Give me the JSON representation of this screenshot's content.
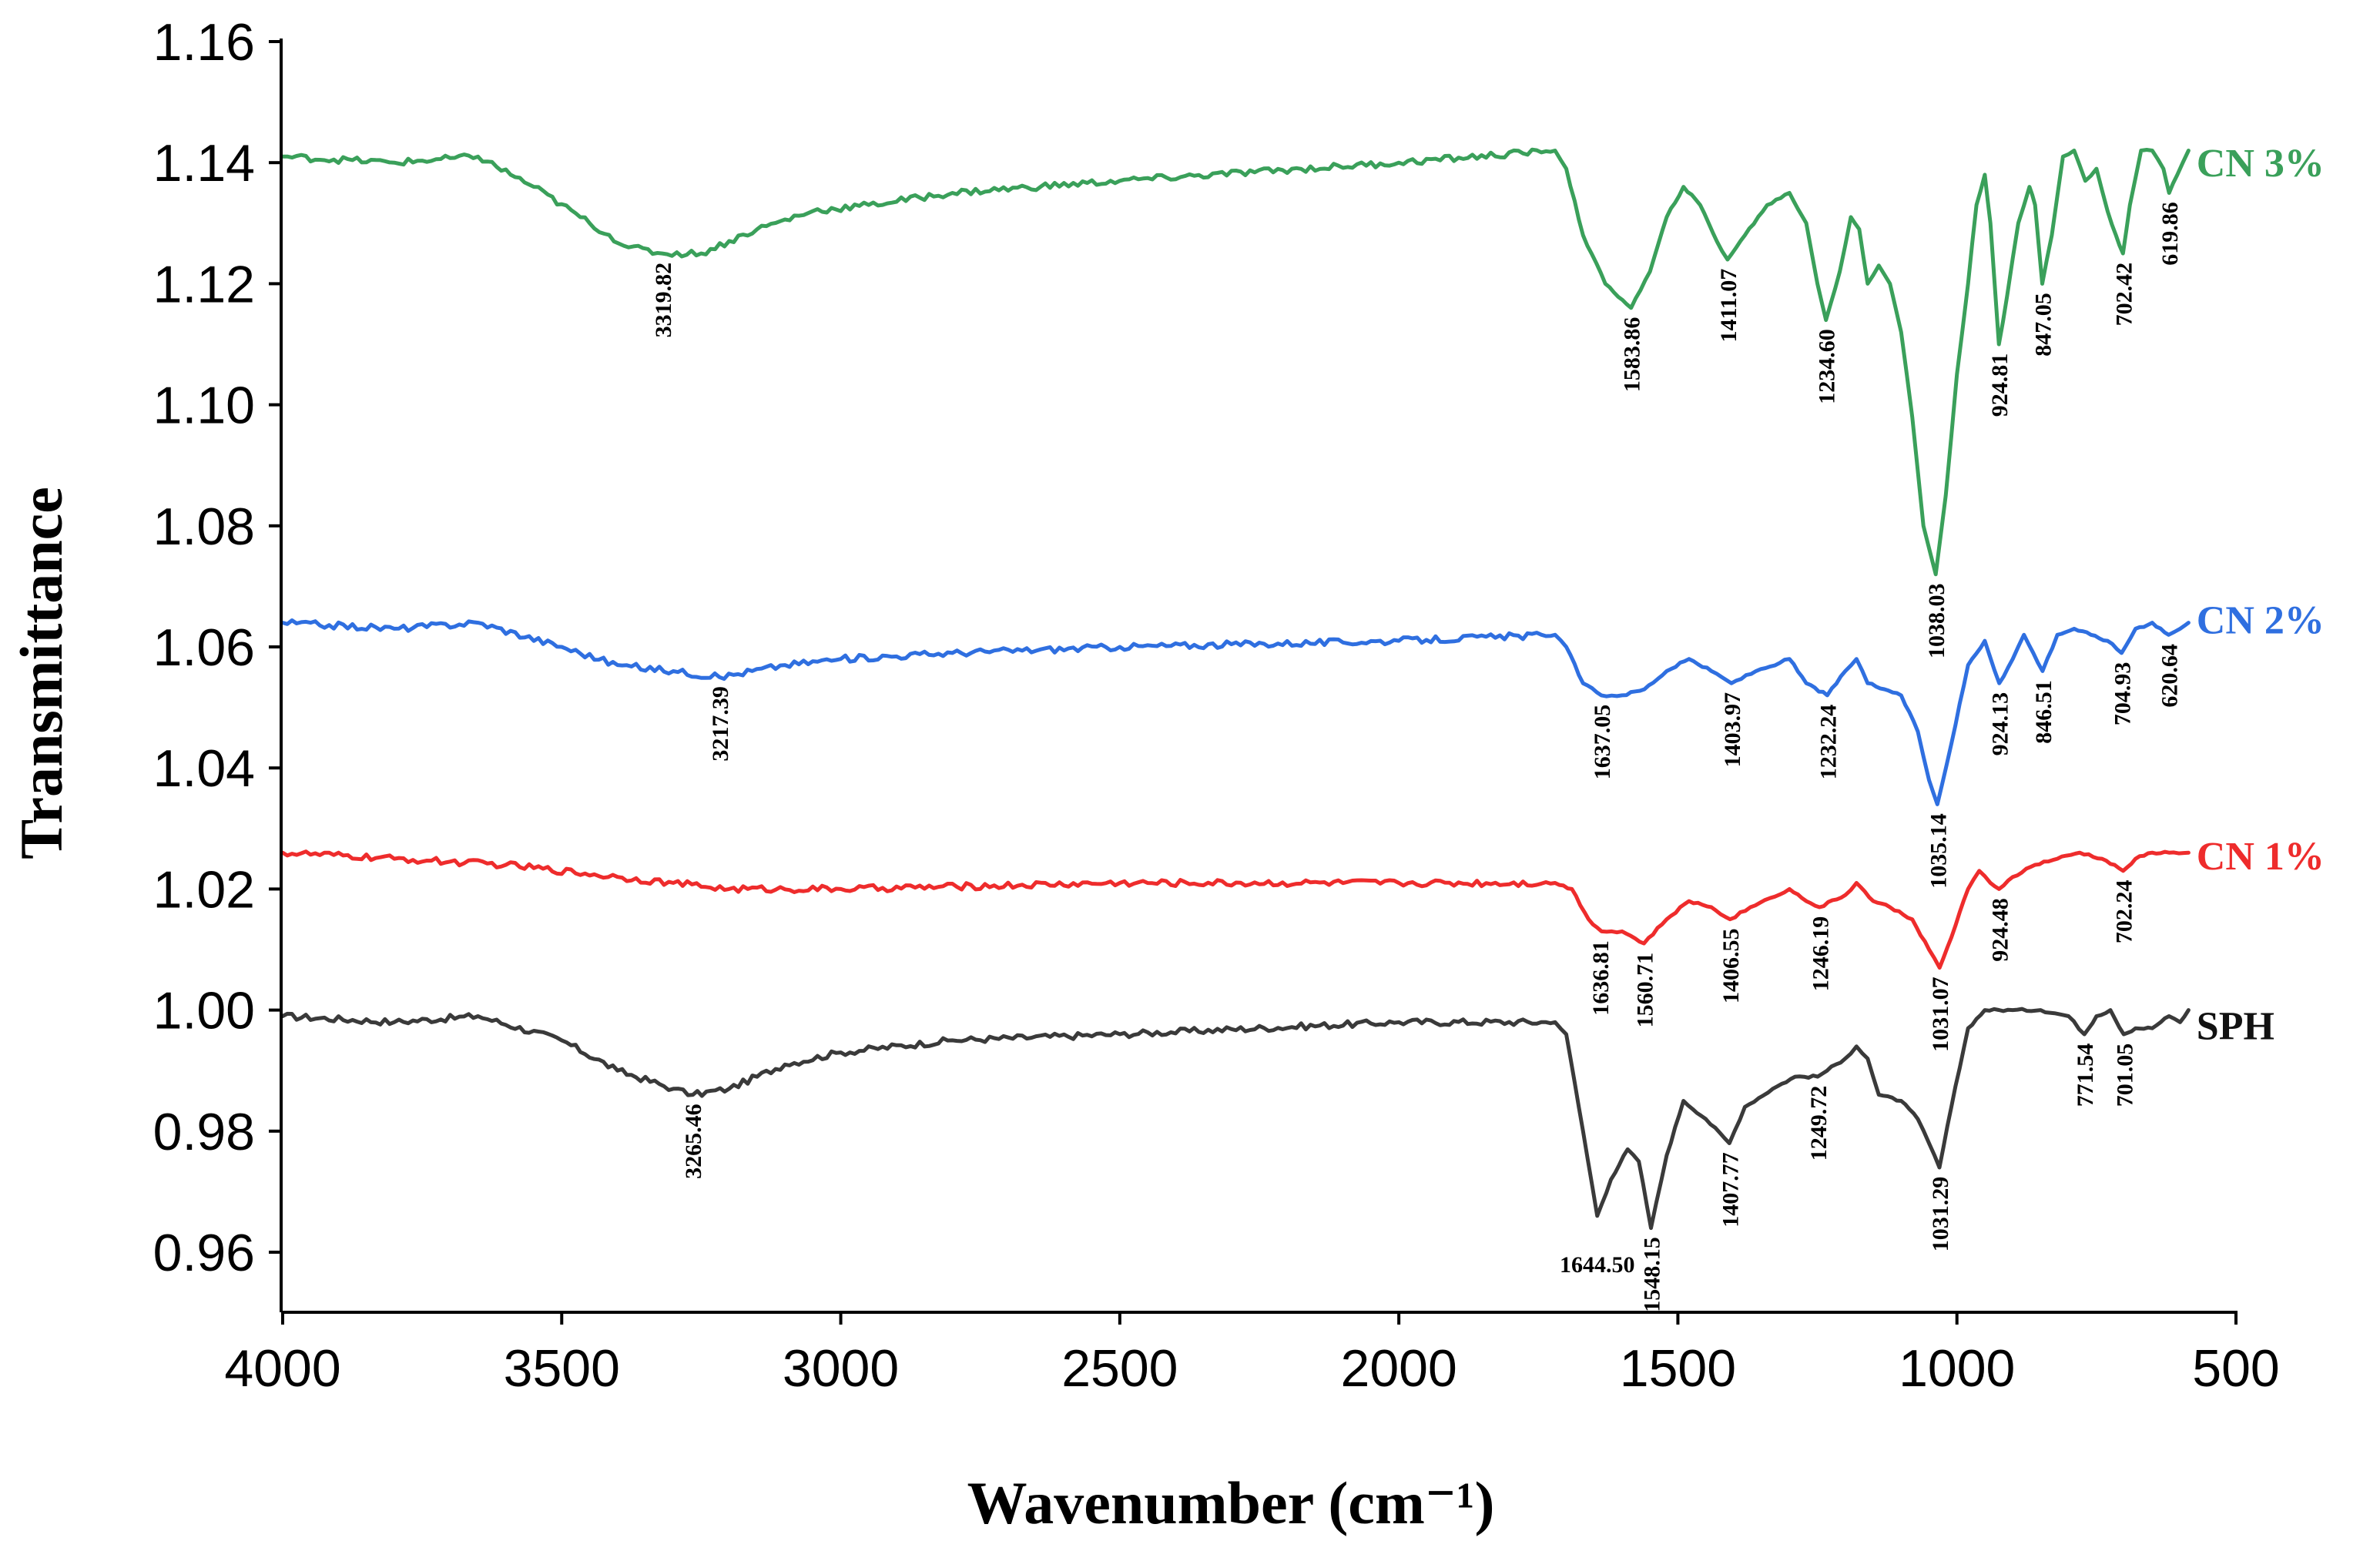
{
  "chart_data": {
    "type": "line",
    "title": "",
    "xlabel": "Wavenumber (cm⁻¹)",
    "ylabel": "Transmittance",
    "xlim": [
      4000,
      500
    ],
    "ylim": [
      0.95,
      1.16
    ],
    "x_ticks": [
      4000,
      3500,
      3000,
      2500,
      2000,
      1500,
      1000,
      500
    ],
    "x_tick_labels": [
      "4000",
      "3500",
      "3000",
      "2500",
      "2000",
      "1500",
      "1000",
      "500"
    ],
    "y_ticks": [
      0.96,
      0.98,
      1.0,
      1.02,
      1.04,
      1.06,
      1.08,
      1.1,
      1.12,
      1.14,
      1.16
    ],
    "y_tick_labels": [
      "0.96",
      "0.98",
      "1.00",
      "1.02",
      "1.04",
      "1.06",
      "1.08",
      "1.10",
      "1.12",
      "1.14",
      "1.16"
    ],
    "grid": false,
    "series": [
      {
        "name": "SPH",
        "color": "#3a3a3a",
        "points": [
          [
            4000,
            0.999
          ],
          [
            3800,
            0.998
          ],
          [
            3650,
            0.999
          ],
          [
            3500,
            0.995
          ],
          [
            3400,
            0.99
          ],
          [
            3300,
            0.987
          ],
          [
            3265,
            0.986
          ],
          [
            3200,
            0.987
          ],
          [
            3100,
            0.991
          ],
          [
            3000,
            0.993
          ],
          [
            2800,
            0.995
          ],
          [
            2500,
            0.996
          ],
          [
            2000,
            0.998
          ],
          [
            1720,
            0.998
          ],
          [
            1700,
            0.996
          ],
          [
            1670,
            0.98
          ],
          [
            1644.5,
            0.966
          ],
          [
            1620,
            0.972
          ],
          [
            1590,
            0.977
          ],
          [
            1570,
            0.975
          ],
          [
            1548.15,
            0.964
          ],
          [
            1520,
            0.976
          ],
          [
            1490,
            0.985
          ],
          [
            1450,
            0.982
          ],
          [
            1407.77,
            0.978
          ],
          [
            1380,
            0.984
          ],
          [
            1330,
            0.987
          ],
          [
            1290,
            0.989
          ],
          [
            1249.72,
            0.989
          ],
          [
            1200,
            0.992
          ],
          [
            1180,
            0.994
          ],
          [
            1160,
            0.992
          ],
          [
            1140,
            0.986
          ],
          [
            1100,
            0.985
          ],
          [
            1070,
            0.982
          ],
          [
            1050,
            0.978
          ],
          [
            1031.29,
            0.974
          ],
          [
            1010,
            0.984
          ],
          [
            980,
            0.997
          ],
          [
            950,
            1.0
          ],
          [
            900,
            1.0
          ],
          [
            850,
            1.0
          ],
          [
            800,
            0.999
          ],
          [
            771.54,
            0.996
          ],
          [
            750,
            0.999
          ],
          [
            725,
            1.0
          ],
          [
            701.05,
            0.996
          ],
          [
            680,
            0.997
          ],
          [
            650,
            0.997
          ],
          [
            620,
            0.999
          ],
          [
            600,
            0.998
          ],
          [
            585,
            1.0
          ]
        ]
      },
      {
        "name": "CN 1%",
        "color": "#ee2c2c",
        "points": [
          [
            4000,
            1.026
          ],
          [
            3800,
            1.025
          ],
          [
            3600,
            1.024
          ],
          [
            3400,
            1.022
          ],
          [
            3300,
            1.021
          ],
          [
            3200,
            1.02
          ],
          [
            3000,
            1.02
          ],
          [
            2500,
            1.021
          ],
          [
            2000,
            1.021
          ],
          [
            1720,
            1.021
          ],
          [
            1690,
            1.02
          ],
          [
            1660,
            1.015
          ],
          [
            1636.81,
            1.013
          ],
          [
            1600,
            1.013
          ],
          [
            1560.71,
            1.011
          ],
          [
            1520,
            1.015
          ],
          [
            1480,
            1.018
          ],
          [
            1440,
            1.017
          ],
          [
            1406.55,
            1.015
          ],
          [
            1370,
            1.017
          ],
          [
            1300,
            1.02
          ],
          [
            1270,
            1.018
          ],
          [
            1246.19,
            1.017
          ],
          [
            1200,
            1.019
          ],
          [
            1180,
            1.021
          ],
          [
            1150,
            1.018
          ],
          [
            1120,
            1.017
          ],
          [
            1080,
            1.015
          ],
          [
            1050,
            1.01
          ],
          [
            1031.07,
            1.007
          ],
          [
            1010,
            1.012
          ],
          [
            980,
            1.02
          ],
          [
            960,
            1.023
          ],
          [
            940,
            1.021
          ],
          [
            924.48,
            1.02
          ],
          [
            900,
            1.022
          ],
          [
            860,
            1.024
          ],
          [
            820,
            1.025
          ],
          [
            780,
            1.026
          ],
          [
            740,
            1.025
          ],
          [
            702.24,
            1.023
          ],
          [
            680,
            1.025
          ],
          [
            650,
            1.026
          ],
          [
            620,
            1.026
          ],
          [
            585,
            1.026
          ]
        ]
      },
      {
        "name": "CN 2%",
        "color": "#2f6fe0",
        "points": [
          [
            4000,
            1.064
          ],
          [
            3800,
            1.063
          ],
          [
            3650,
            1.064
          ],
          [
            3500,
            1.06
          ],
          [
            3400,
            1.057
          ],
          [
            3300,
            1.056
          ],
          [
            3217.39,
            1.055
          ],
          [
            3100,
            1.057
          ],
          [
            3000,
            1.058
          ],
          [
            2800,
            1.059
          ],
          [
            2500,
            1.06
          ],
          [
            2000,
            1.061
          ],
          [
            1720,
            1.062
          ],
          [
            1700,
            1.06
          ],
          [
            1670,
            1.054
          ],
          [
            1637.05,
            1.052
          ],
          [
            1600,
            1.052
          ],
          [
            1560,
            1.053
          ],
          [
            1520,
            1.056
          ],
          [
            1480,
            1.058
          ],
          [
            1440,
            1.056
          ],
          [
            1403.97,
            1.054
          ],
          [
            1360,
            1.056
          ],
          [
            1300,
            1.058
          ],
          [
            1270,
            1.054
          ],
          [
            1232.24,
            1.052
          ],
          [
            1200,
            1.056
          ],
          [
            1180,
            1.058
          ],
          [
            1160,
            1.054
          ],
          [
            1130,
            1.053
          ],
          [
            1100,
            1.052
          ],
          [
            1070,
            1.046
          ],
          [
            1050,
            1.038
          ],
          [
            1035.14,
            1.034
          ],
          [
            1010,
            1.044
          ],
          [
            980,
            1.057
          ],
          [
            950,
            1.061
          ],
          [
            924.13,
            1.054
          ],
          [
            900,
            1.058
          ],
          [
            880,
            1.062
          ],
          [
            846.51,
            1.056
          ],
          [
            820,
            1.062
          ],
          [
            790,
            1.063
          ],
          [
            760,
            1.062
          ],
          [
            730,
            1.061
          ],
          [
            704.93,
            1.059
          ],
          [
            680,
            1.063
          ],
          [
            650,
            1.064
          ],
          [
            620.64,
            1.062
          ],
          [
            600,
            1.063
          ],
          [
            585,
            1.064
          ]
        ]
      },
      {
        "name": "CN 3%",
        "color": "#3aa05a",
        "points": [
          [
            4000,
            1.141
          ],
          [
            3800,
            1.14
          ],
          [
            3650,
            1.141
          ],
          [
            3550,
            1.136
          ],
          [
            3450,
            1.13
          ],
          [
            3380,
            1.126
          ],
          [
            3319.82,
            1.125
          ],
          [
            3250,
            1.125
          ],
          [
            3150,
            1.129
          ],
          [
            3050,
            1.132
          ],
          [
            2950,
            1.133
          ],
          [
            2800,
            1.135
          ],
          [
            2500,
            1.137
          ],
          [
            2000,
            1.14
          ],
          [
            1720,
            1.142
          ],
          [
            1700,
            1.139
          ],
          [
            1670,
            1.128
          ],
          [
            1630,
            1.12
          ],
          [
            1583.86,
            1.116
          ],
          [
            1550,
            1.122
          ],
          [
            1520,
            1.131
          ],
          [
            1490,
            1.136
          ],
          [
            1460,
            1.133
          ],
          [
            1430,
            1.127
          ],
          [
            1411.07,
            1.124
          ],
          [
            1380,
            1.128
          ],
          [
            1340,
            1.133
          ],
          [
            1300,
            1.135
          ],
          [
            1270,
            1.13
          ],
          [
            1250,
            1.12
          ],
          [
            1234.6,
            1.114
          ],
          [
            1210,
            1.122
          ],
          [
            1190,
            1.131
          ],
          [
            1175,
            1.129
          ],
          [
            1160,
            1.12
          ],
          [
            1140,
            1.123
          ],
          [
            1120,
            1.12
          ],
          [
            1100,
            1.112
          ],
          [
            1080,
            1.098
          ],
          [
            1060,
            1.08
          ],
          [
            1038.03,
            1.072
          ],
          [
            1020,
            1.085
          ],
          [
            1000,
            1.105
          ],
          [
            980,
            1.12
          ],
          [
            965,
            1.133
          ],
          [
            950,
            1.138
          ],
          [
            940,
            1.13
          ],
          [
            924.81,
            1.11
          ],
          [
            910,
            1.118
          ],
          [
            890,
            1.13
          ],
          [
            870,
            1.136
          ],
          [
            860,
            1.133
          ],
          [
            847.05,
            1.12
          ],
          [
            830,
            1.128
          ],
          [
            810,
            1.141
          ],
          [
            790,
            1.142
          ],
          [
            770,
            1.137
          ],
          [
            750,
            1.139
          ],
          [
            730,
            1.132
          ],
          [
            715,
            1.128
          ],
          [
            702.42,
            1.125
          ],
          [
            690,
            1.133
          ],
          [
            670,
            1.142
          ],
          [
            650,
            1.142
          ],
          [
            630,
            1.139
          ],
          [
            619.86,
            1.135
          ],
          [
            605,
            1.138
          ],
          [
            585,
            1.142
          ]
        ]
      }
    ],
    "series_labels": [
      {
        "name": "CN 3%",
        "text": "CN 3%",
        "x": 590,
        "y": 1.14
      },
      {
        "name": "CN 2%",
        "text": "CN 2%",
        "x": 590,
        "y": 1.0645
      },
      {
        "name": "CN 1%",
        "text": "CN 1%",
        "x": 590,
        "y": 1.0255
      },
      {
        "name": "SPH",
        "text": "SPH",
        "x": 590,
        "y": 0.9975
      }
    ],
    "annotations": [
      {
        "text": "3319.82",
        "series": "CN 3%",
        "x": 3319.82,
        "y": 1.1235
      },
      {
        "text": "1583.86",
        "series": "CN 3%",
        "x": 1583.86,
        "y": 1.1145
      },
      {
        "text": "1411.07",
        "series": "CN 3%",
        "x": 1411.07,
        "y": 1.1225
      },
      {
        "text": "1234.60",
        "series": "CN 3%",
        "x": 1234.6,
        "y": 1.1125
      },
      {
        "text": "1038.03",
        "series": "CN 3%",
        "x": 1038.03,
        "y": 1.0705
      },
      {
        "text": "924.81",
        "series": "CN 3%",
        "x": 924.81,
        "y": 1.1085
      },
      {
        "text": "847.05",
        "series": "CN 3%",
        "x": 847.05,
        "y": 1.1185
      },
      {
        "text": "702.42",
        "series": "CN 3%",
        "x": 702.42,
        "y": 1.1235
      },
      {
        "text": "619.86",
        "series": "CN 3%",
        "x": 619.86,
        "y": 1.1335
      },
      {
        "text": "3217.39",
        "series": "CN 2%",
        "x": 3217.39,
        "y": 1.0535
      },
      {
        "text": "1637.05",
        "series": "CN 2%",
        "x": 1637.05,
        "y": 1.0505
      },
      {
        "text": "1403.97",
        "series": "CN 2%",
        "x": 1403.97,
        "y": 1.0525
      },
      {
        "text": "1232.24",
        "series": "CN 2%",
        "x": 1232.24,
        "y": 1.0505
      },
      {
        "text": "1035.14",
        "series": "CN 2%",
        "x": 1035.14,
        "y": 1.0325
      },
      {
        "text": "924.13",
        "series": "CN 2%",
        "x": 924.13,
        "y": 1.0525
      },
      {
        "text": "846.51",
        "series": "CN 2%",
        "x": 846.51,
        "y": 1.0545
      },
      {
        "text": "704.93",
        "series": "CN 2%",
        "x": 704.93,
        "y": 1.0575
      },
      {
        "text": "620.64",
        "series": "CN 2%",
        "x": 620.64,
        "y": 1.0605
      },
      {
        "text": "1636.81",
        "series": "CN 1%",
        "x": 1640,
        "y": 1.0115
      },
      {
        "text": "1560.71",
        "series": "CN 1%",
        "x": 1560.71,
        "y": 1.0095
      },
      {
        "text": "1406.55",
        "series": "CN 1%",
        "x": 1406.55,
        "y": 1.0135
      },
      {
        "text": "1246.19",
        "series": "CN 1%",
        "x": 1246.19,
        "y": 1.0155
      },
      {
        "text": "1031.07",
        "series": "CN 1%",
        "x": 1031.07,
        "y": 1.0055
      },
      {
        "text": "924.48",
        "series": "CN 1%",
        "x": 924.48,
        "y": 1.0185
      },
      {
        "text": "702.24",
        "series": "CN 1%",
        "x": 702.24,
        "y": 1.0215
      },
      {
        "text": "3265.46",
        "series": "SPH",
        "x": 3265.46,
        "y": 0.9845
      },
      {
        "text": "1644.50",
        "series": "SPH",
        "x": 1644.5,
        "y": 0.9615,
        "orientation": "horizontal"
      },
      {
        "text": "1548.15",
        "series": "SPH",
        "x": 1548.15,
        "y": 0.9625
      },
      {
        "text": "1407.77",
        "series": "SPH",
        "x": 1407.77,
        "y": 0.9765
      },
      {
        "text": "1249.72",
        "series": "SPH",
        "x": 1249.72,
        "y": 0.9875
      },
      {
        "text": "1031.29",
        "series": "SPH",
        "x": 1031.29,
        "y": 0.9725
      },
      {
        "text": "771.54",
        "series": "SPH",
        "x": 771.54,
        "y": 0.9945
      },
      {
        "text": "701.05",
        "series": "SPH",
        "x": 701.05,
        "y": 0.9945
      }
    ]
  }
}
